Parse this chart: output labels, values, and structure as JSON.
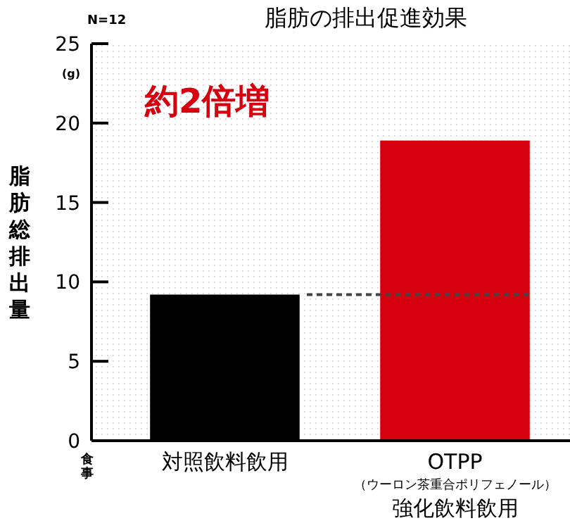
{
  "chart_data": {
    "type": "bar",
    "title": "脂肪の排出促進効果",
    "ylabel": "脂肪総排出量",
    "categories": [
      "対照飲料飲用",
      "OTPP（ウーロン茶重合ポリフェノール）強化飲料飲用"
    ],
    "values": [
      9.2,
      18.9
    ],
    "colors": [
      "#000000",
      "#d7000f"
    ],
    "ylim": [
      0,
      25
    ],
    "yticks": [
      0,
      5,
      10,
      15,
      20,
      25
    ],
    "ref_lines": [
      {
        "axis": "y",
        "value": 9.2,
        "line_style": "dashed",
        "color": "#444444"
      }
    ],
    "annotations": [
      "N=12",
      "(g)",
      "約2倍増",
      "食事"
    ]
  }
}
